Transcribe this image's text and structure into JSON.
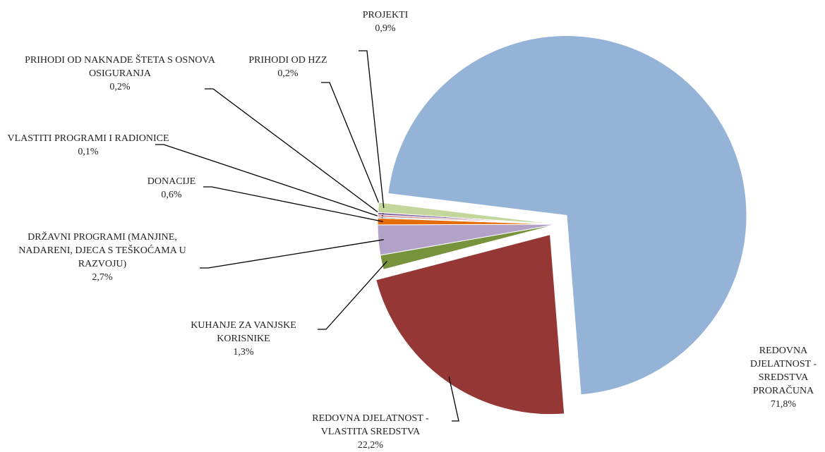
{
  "chart_data": {
    "type": "pie",
    "categories": [
      "REDOVNA DJELATNOST - SREDSTVA PRORAČUNA",
      "REDOVNA DJELATNOST - VLASTITA SREDSTVA",
      "KUHANJE ZA VANJSKE KORISNIKE",
      "DRŽAVNI PROGRAMI (MANJINE, NADARENI, DJECA S TEŠKOĆAMA U RAZVOJU)",
      "DONACIJE",
      "VLASTITI PROGRAMI I RADIONICE",
      "PRIHODI OD NAKNADE ŠTETA S OSNOVA OSIGURANJA",
      "PRIHODI OD HZZ",
      "PROJEKTI"
    ],
    "values": [
      71.8,
      22.2,
      1.3,
      2.7,
      0.6,
      0.1,
      0.2,
      0.2,
      0.9
    ],
    "value_labels": [
      "71,8%",
      "22,2%",
      "1,3%",
      "2,7%",
      "0,6%",
      "0,1%",
      "0,2%",
      "0,2%",
      "0,9%"
    ],
    "colors": [
      "#95b3d7",
      "#953735",
      "#77933c",
      "#b3a2c7",
      "#e46c0a",
      "#4bacc6",
      "#d99694",
      "#8064a2",
      "#c3d69b"
    ],
    "exploded": [
      true,
      true,
      false,
      false,
      false,
      false,
      false,
      false,
      false
    ]
  }
}
